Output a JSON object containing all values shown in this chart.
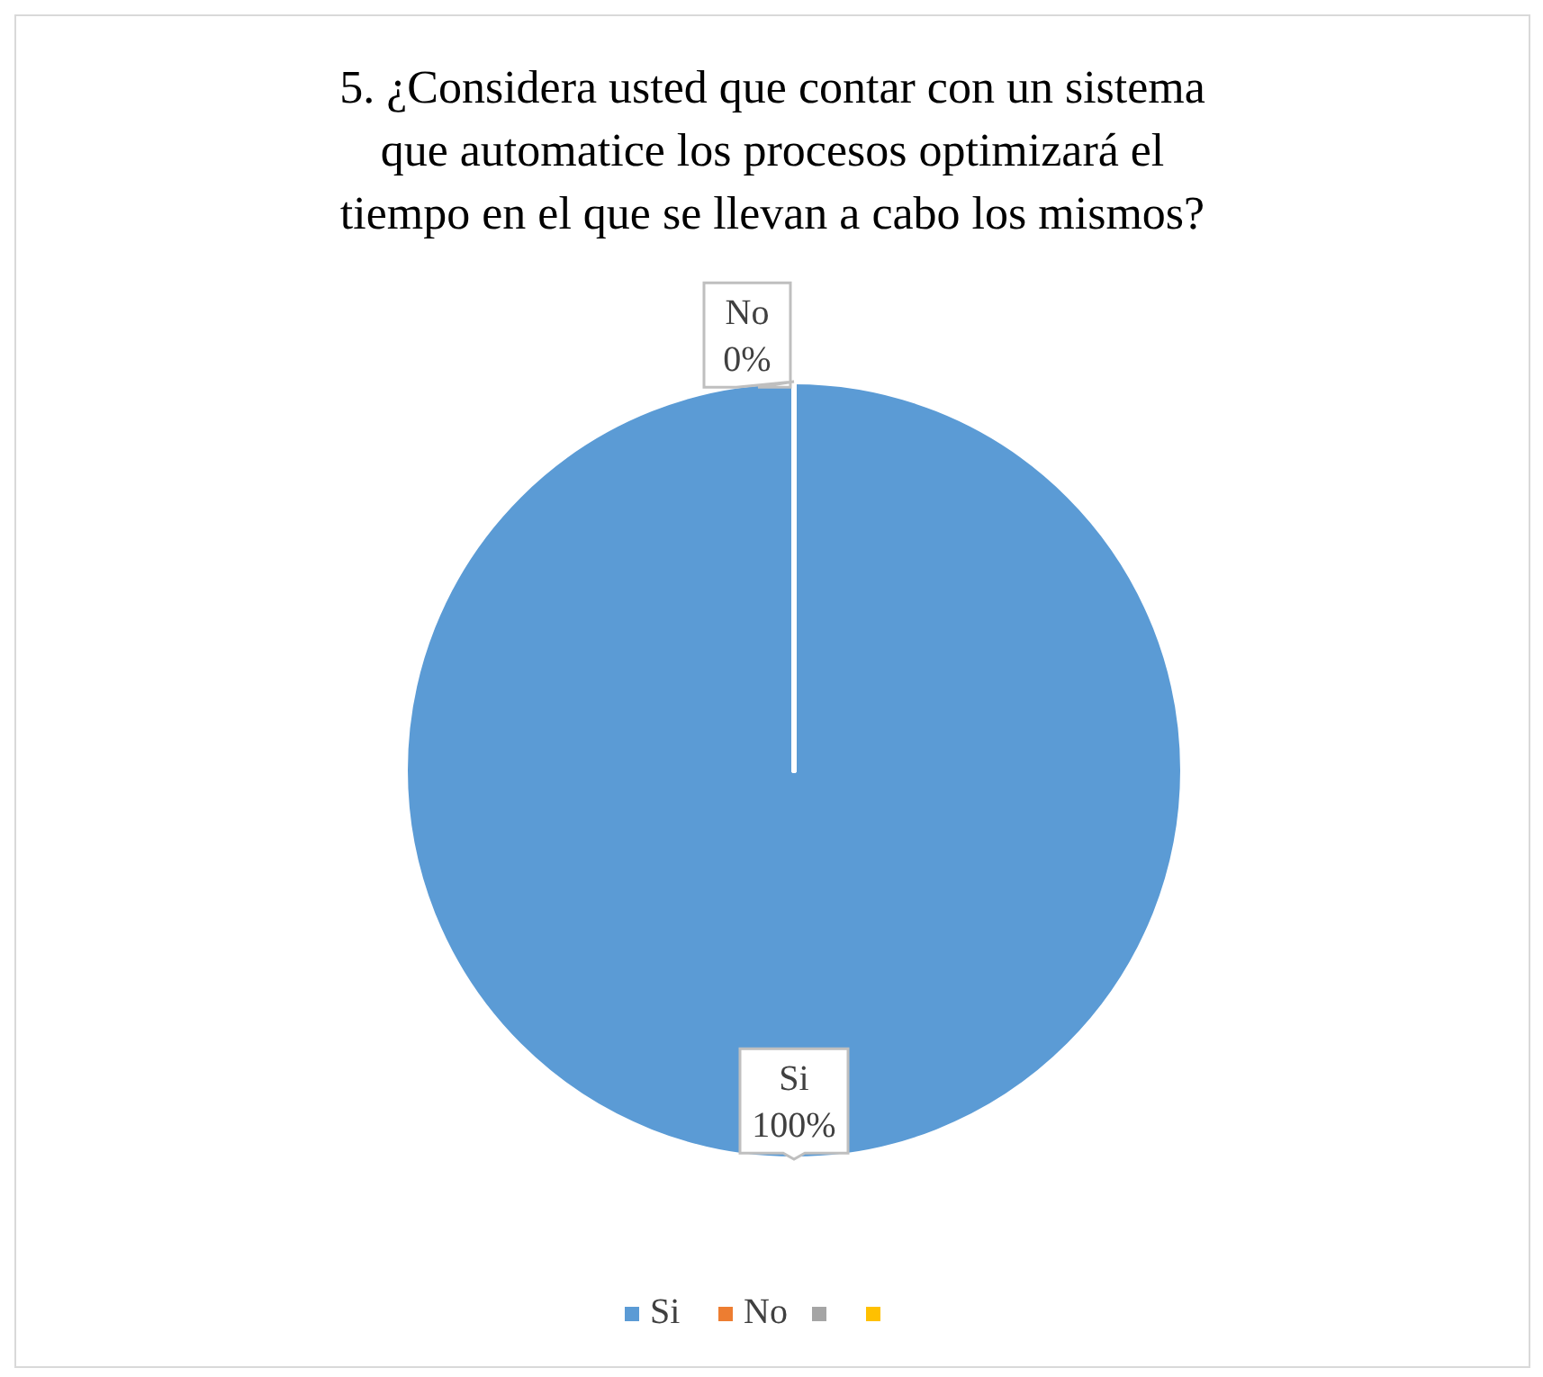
{
  "chart_data": {
    "type": "pie",
    "title": "5. ¿Considera usted que contar con un sistema que automatice los procesos optimizará el tiempo en el que se llevan a cabo los mismos?",
    "categories": [
      "Si",
      "No",
      null,
      null
    ],
    "values": [
      100,
      0,
      0,
      0
    ],
    "colors": [
      "#5b9bd5",
      "#ed7d31",
      "#a5a5a5",
      "#ffc000"
    ],
    "value_labels": [
      "100%",
      "0%",
      null,
      null
    ],
    "legend": "bottom"
  }
}
